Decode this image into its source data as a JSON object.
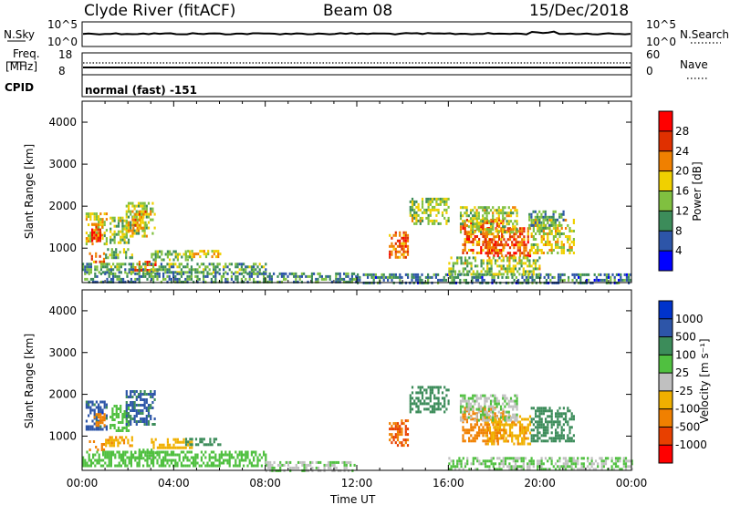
{
  "header": {
    "station": "Clyde River (fitACF)",
    "beam": "Beam 08",
    "date": "15/Dec/2018"
  },
  "panels": {
    "nsky": {
      "label": "N.Sky",
      "right_label": "N.Search",
      "ticks_left": [
        "10^5",
        "10^0"
      ],
      "ticks_right": [
        "10^5",
        "10^0"
      ]
    },
    "freq": {
      "label": "Freq.",
      "unit": "[MHz]",
      "right_label": "Nave",
      "ticks_left": [
        "18",
        "8"
      ],
      "ticks_right": [
        "60",
        "0"
      ]
    },
    "cpid": {
      "label": "CPID",
      "text": "normal (fast)  -151"
    }
  },
  "colors": {
    "power_scale": [
      "#0000ff",
      "#2d55a8",
      "#3c8c5a",
      "#80c040",
      "#f0d000",
      "#f08000",
      "#e03000",
      "#ff0000"
    ],
    "velocity_scale": [
      "#ff0000",
      "#e84000",
      "#f08000",
      "#f0b000",
      "#c0c0c0",
      "#50c040",
      "#3c8c5a",
      "#2d55a8",
      "#0033cc"
    ]
  },
  "chart_data": [
    {
      "type": "heatmap",
      "name": "power",
      "ylabel": "Slant Range [km]",
      "xlabel": "",
      "xticks": [
        "00:00",
        "04:00",
        "08:00",
        "12:00",
        "16:00",
        "20:00",
        "00:00"
      ],
      "xlim_hours": [
        0,
        24
      ],
      "ylim": [
        180,
        4500
      ],
      "yticks": [
        1000,
        2000,
        3000,
        4000
      ],
      "colorbar": {
        "label": "Power [dB]",
        "ticks": [
          "4",
          "8",
          "12",
          "16",
          "20",
          "24",
          "28"
        ],
        "range": [
          0,
          30
        ]
      },
      "regions": [
        {
          "t": [
            0.15,
            1.05
          ],
          "r": [
            1100,
            1850
          ],
          "v": 16
        },
        {
          "t": [
            0.4,
            0.9
          ],
          "r": [
            1200,
            1600
          ],
          "v": 26
        },
        {
          "t": [
            1.2,
            2.0
          ],
          "r": [
            1100,
            1750
          ],
          "v": 14
        },
        {
          "t": [
            1.9,
            3.2
          ],
          "r": [
            1300,
            2100
          ],
          "v": 15
        },
        {
          "t": [
            2.2,
            2.8
          ],
          "r": [
            1500,
            1900
          ],
          "v": 19
        },
        {
          "t": [
            0.3,
            1.0
          ],
          "r": [
            650,
            900
          ],
          "v": 22
        },
        {
          "t": [
            1.0,
            2.2
          ],
          "r": [
            800,
            1000
          ],
          "v": 12
        },
        {
          "t": [
            2.2,
            3.3
          ],
          "r": [
            450,
            700
          ],
          "v": 23
        },
        {
          "t": [
            3.0,
            4.8
          ],
          "r": [
            750,
            950
          ],
          "v": 13
        },
        {
          "t": [
            4.5,
            6.0
          ],
          "r": [
            780,
            960
          ],
          "v": 17
        },
        {
          "t": [
            0.0,
            8.0
          ],
          "r": [
            420,
            650
          ],
          "v": 11
        },
        {
          "t": [
            12.0,
            24.0
          ],
          "r": [
            200,
            400
          ],
          "v": 8
        },
        {
          "t": [
            0.0,
            12.0
          ],
          "r": [
            200,
            420
          ],
          "v": 9
        },
        {
          "t": [
            13.4,
            14.2
          ],
          "r": [
            800,
            1400
          ],
          "v": 22
        },
        {
          "t": [
            14.3,
            16.0
          ],
          "r": [
            1600,
            2200
          ],
          "v": 14
        },
        {
          "t": [
            16.6,
            18.4
          ],
          "r": [
            900,
            1700
          ],
          "v": 22
        },
        {
          "t": [
            17.6,
            19.6
          ],
          "r": [
            800,
            1500
          ],
          "v": 23
        },
        {
          "t": [
            16.5,
            19.0
          ],
          "r": [
            1400,
            2000
          ],
          "v": 15
        },
        {
          "t": [
            19.6,
            21.5
          ],
          "r": [
            900,
            1700
          ],
          "v": 16
        },
        {
          "t": [
            19.5,
            21.0
          ],
          "r": [
            1500,
            1900
          ],
          "v": 10
        },
        {
          "t": [
            16.0,
            20.0
          ],
          "r": [
            400,
            800
          ],
          "v": 14
        }
      ]
    },
    {
      "type": "heatmap",
      "name": "velocity",
      "ylabel": "Slant Range [km]",
      "xlabel": "Time UT",
      "xticks": [
        "00:00",
        "04:00",
        "08:00",
        "12:00",
        "16:00",
        "20:00",
        "00:00"
      ],
      "xlim_hours": [
        0,
        24
      ],
      "ylim": [
        180,
        4500
      ],
      "yticks": [
        1000,
        2000,
        3000,
        4000
      ],
      "colorbar": {
        "label": "Velocity [m s⁻¹]",
        "ticks": [
          "1000",
          "500",
          "100",
          "25",
          "-25",
          "-100",
          "-500",
          "-1000"
        ],
        "levels": [
          -1250,
          -1000,
          -500,
          -100,
          -25,
          25,
          100,
          500,
          1000,
          1250
        ]
      },
      "regions": [
        {
          "t": [
            0.15,
            1.05
          ],
          "r": [
            1150,
            1850
          ],
          "v": 700
        },
        {
          "t": [
            0.5,
            1.0
          ],
          "r": [
            1250,
            1550
          ],
          "v": -300
        },
        {
          "t": [
            1.2,
            2.0
          ],
          "r": [
            1150,
            1750
          ],
          "v": 60
        },
        {
          "t": [
            1.9,
            3.2
          ],
          "r": [
            1300,
            2100
          ],
          "v": 600
        },
        {
          "t": [
            0.3,
            1.0
          ],
          "r": [
            650,
            900
          ],
          "v": -300
        },
        {
          "t": [
            1.0,
            2.2
          ],
          "r": [
            800,
            1000
          ],
          "v": -80
        },
        {
          "t": [
            2.2,
            3.3
          ],
          "r": [
            450,
            700
          ],
          "v": 40
        },
        {
          "t": [
            3.0,
            4.8
          ],
          "r": [
            750,
            950
          ],
          "v": -60
        },
        {
          "t": [
            4.5,
            6.0
          ],
          "r": [
            780,
            960
          ],
          "v": 300
        },
        {
          "t": [
            0.0,
            8.0
          ],
          "r": [
            300,
            650
          ],
          "v": 50
        },
        {
          "t": [
            8.0,
            12.0
          ],
          "r": [
            200,
            400
          ],
          "v": 20
        },
        {
          "t": [
            13.4,
            14.2
          ],
          "r": [
            800,
            1400
          ],
          "v": -600
        },
        {
          "t": [
            14.3,
            16.0
          ],
          "r": [
            1600,
            2200
          ],
          "v": 200
        },
        {
          "t": [
            16.6,
            18.4
          ],
          "r": [
            900,
            1700
          ],
          "v": -300
        },
        {
          "t": [
            17.6,
            19.6
          ],
          "r": [
            800,
            1500
          ],
          "v": -80
        },
        {
          "t": [
            19.6,
            21.5
          ],
          "r": [
            900,
            1700
          ],
          "v": 300
        },
        {
          "t": [
            16.5,
            19.0
          ],
          "r": [
            1400,
            2000
          ],
          "v": 20
        },
        {
          "t": [
            16.0,
            24.0
          ],
          "r": [
            200,
            500
          ],
          "v": 30
        }
      ]
    }
  ]
}
